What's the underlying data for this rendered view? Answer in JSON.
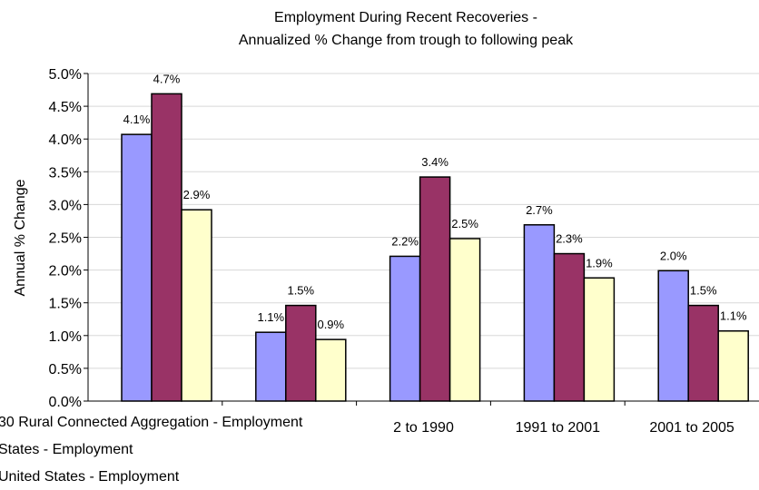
{
  "chart_data": {
    "type": "bar",
    "title_line1": "Employment During Recent Recoveries -",
    "title_line2": "Annualized % Change from trough to following peak",
    "ylabel": "Annual % Change",
    "xlabel": "",
    "ylim": [
      0,
      5
    ],
    "y_ticks": [
      "0.0%",
      "0.5%",
      "1.0%",
      "1.5%",
      "2.0%",
      "2.5%",
      "3.0%",
      "3.5%",
      "4.0%",
      "4.5%",
      "5.0%"
    ],
    "categories": [
      "",
      "",
      "2 to 1990",
      "1991 to 2001",
      "2001 to 2005"
    ],
    "series": [
      {
        "name": "30 Rural Connected Aggregation - Employment",
        "color": "#9999ff",
        "values": [
          4.07,
          1.05,
          2.21,
          2.69,
          1.99
        ],
        "labels": [
          "4.1%",
          "1.1%",
          "2.2%",
          "2.7%",
          "2.0%"
        ]
      },
      {
        "name": "States - Employment",
        "color": "#993366",
        "values": [
          4.69,
          1.46,
          3.42,
          2.25,
          1.46
        ],
        "labels": [
          "4.7%",
          "1.5%",
          "3.4%",
          "2.3%",
          "1.5%"
        ]
      },
      {
        "name": "United States - Employment",
        "color": "#ffffcc",
        "values": [
          2.92,
          0.94,
          2.48,
          1.88,
          1.07
        ],
        "labels": [
          "2.9%",
          "0.9%",
          "2.5%",
          "1.9%",
          "1.1%"
        ]
      }
    ],
    "grid": true,
    "legend_position": "bottom-left"
  }
}
